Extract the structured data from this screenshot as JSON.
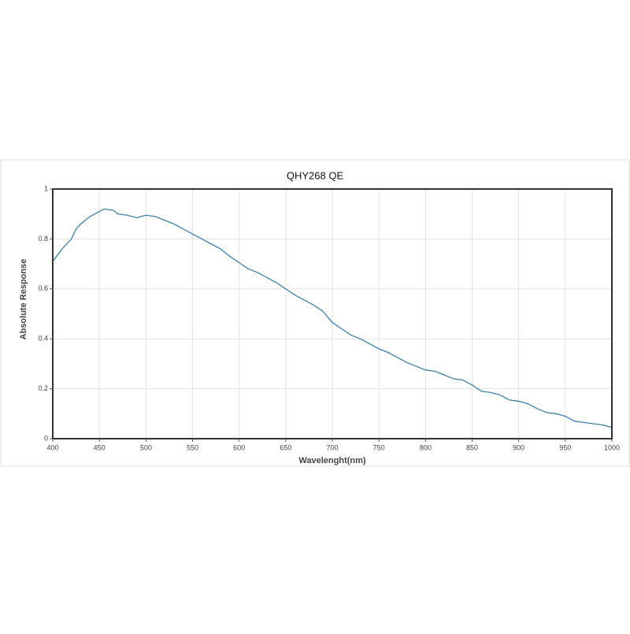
{
  "chart_data": {
    "type": "line",
    "title": "QHY268 QE",
    "x_label": "Wavelenght(nm)",
    "y_label": "Absolute Response",
    "x": [
      400,
      410,
      420,
      425,
      430,
      440,
      450,
      455,
      465,
      470,
      480,
      490,
      500,
      510,
      520,
      530,
      540,
      550,
      560,
      570,
      580,
      590,
      600,
      610,
      620,
      630,
      640,
      650,
      660,
      670,
      680,
      690,
      700,
      710,
      720,
      730,
      740,
      750,
      760,
      770,
      780,
      790,
      800,
      810,
      820,
      830,
      840,
      850,
      860,
      870,
      880,
      890,
      900,
      910,
      920,
      930,
      940,
      950,
      960,
      970,
      980,
      990,
      1000
    ],
    "series": [
      {
        "name": "QE",
        "color": "#3f80a8",
        "values": [
          0.71,
          0.76,
          0.8,
          0.84,
          0.86,
          0.89,
          0.91,
          0.92,
          0.915,
          0.9,
          0.895,
          0.885,
          0.895,
          0.89,
          0.875,
          0.86,
          0.84,
          0.82,
          0.8,
          0.78,
          0.76,
          0.73,
          0.705,
          0.68,
          0.665,
          0.645,
          0.625,
          0.6,
          0.575,
          0.555,
          0.535,
          0.51,
          0.465,
          0.44,
          0.415,
          0.4,
          0.38,
          0.36,
          0.345,
          0.325,
          0.305,
          0.29,
          0.275,
          0.27,
          0.255,
          0.24,
          0.235,
          0.215,
          0.19,
          0.185,
          0.175,
          0.155,
          0.15,
          0.14,
          0.12,
          0.105,
          0.1,
          0.09,
          0.07,
          0.065,
          0.06,
          0.055,
          0.045
        ]
      }
    ],
    "xlim": [
      400,
      1000
    ],
    "xticks": [
      400,
      450,
      500,
      550,
      600,
      650,
      700,
      750,
      800,
      850,
      900,
      950,
      1000
    ],
    "ylim": [
      0,
      1
    ],
    "yticks": [
      0,
      0.2,
      0.4,
      0.6,
      0.8,
      1
    ],
    "grid": true,
    "legend": false
  }
}
